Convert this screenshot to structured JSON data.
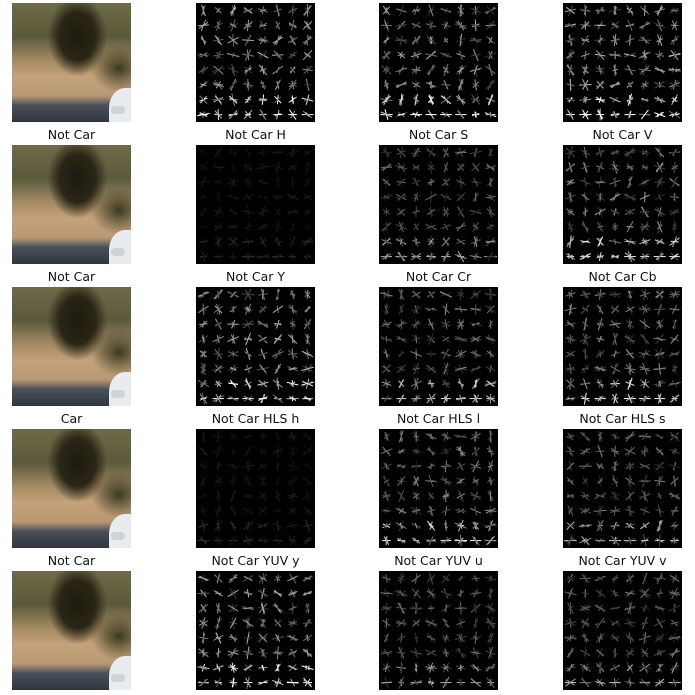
{
  "rows": [
    {
      "labels": [
        "Not Car",
        "Not Car H",
        "Not Car S",
        "Not Car V"
      ],
      "intensity": [
        1,
        0.75,
        0.7,
        0.75
      ]
    },
    {
      "labels": [
        "Not Car",
        "Not Car Y",
        "Not Car Cr",
        "Not Car Cb"
      ],
      "intensity": [
        1,
        0.12,
        0.45,
        0.6
      ]
    },
    {
      "labels": [
        "Car",
        "Not Car HLS h",
        "Not Car HLS l",
        "Not Car HLS s"
      ],
      "intensity": [
        1,
        0.75,
        0.55,
        0.6
      ]
    },
    {
      "labels": [
        "Not Car",
        "Not Car YUV y",
        "Not Car YUV u",
        "Not Car YUV v"
      ],
      "intensity": [
        1,
        0.12,
        0.6,
        0.5
      ]
    },
    {
      "labels": [
        "",
        "",
        "",
        ""
      ],
      "intensity": [
        1,
        0.75,
        0.45,
        0.5
      ]
    }
  ]
}
